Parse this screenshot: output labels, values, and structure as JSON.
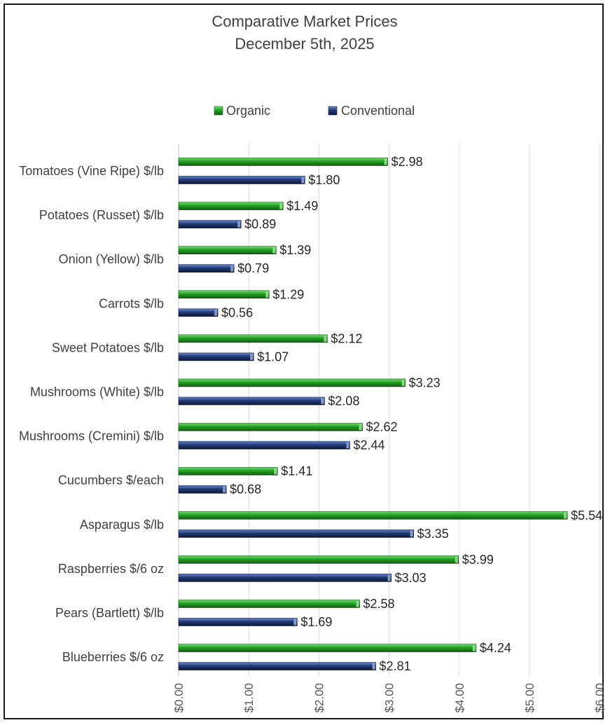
{
  "chart_data": {
    "type": "bar",
    "orientation": "horizontal",
    "title": "Comparative Market Prices",
    "subtitle": "December 5th, 2025",
    "xlabel": "",
    "ylabel": "",
    "xlim": [
      0,
      6
    ],
    "tick_values": [
      0,
      1,
      2,
      3,
      4,
      5,
      6
    ],
    "tick_labels": [
      "$0.00",
      "$1.00",
      "$2.00",
      "$3.00",
      "$4.00",
      "$5.00",
      "$6.00"
    ],
    "grid": true,
    "legend_position": "top",
    "categories": [
      "Tomatoes (Vine Ripe) $/lb",
      "Potatoes (Russet) $/lb",
      "Onion (Yellow) $/lb",
      "Carrots $/lb",
      "Sweet Potatoes $/lb",
      "Mushrooms (White) $/lb",
      "Mushrooms (Cremini) $/lb",
      "Cucumbers $/each",
      "Asparagus $/lb",
      "Raspberries $/6 oz",
      "Pears (Bartlett) $/lb",
      "Blueberries $/6 oz"
    ],
    "series": [
      {
        "name": "Organic",
        "color": "#1e8c1e",
        "values": [
          2.98,
          1.49,
          1.39,
          1.29,
          2.12,
          3.23,
          2.62,
          1.41,
          5.54,
          3.99,
          2.58,
          4.24
        ],
        "labels": [
          "$2.98",
          "$1.49",
          "$1.39",
          "$1.29",
          "$2.12",
          "$3.23",
          "$2.62",
          "$1.41",
          "$5.54",
          "$3.99",
          "$2.58",
          "$4.24"
        ]
      },
      {
        "name": "Conventional",
        "color": "#1f3466",
        "values": [
          1.8,
          0.89,
          0.79,
          0.56,
          1.07,
          2.08,
          2.44,
          0.68,
          3.35,
          3.03,
          1.69,
          2.81
        ],
        "labels": [
          "$1.80",
          "$0.89",
          "$0.79",
          "$0.56",
          "$1.07",
          "$2.08",
          "$2.44",
          "$0.68",
          "$3.35",
          "$3.03",
          "$1.69",
          "$2.81"
        ]
      }
    ]
  }
}
